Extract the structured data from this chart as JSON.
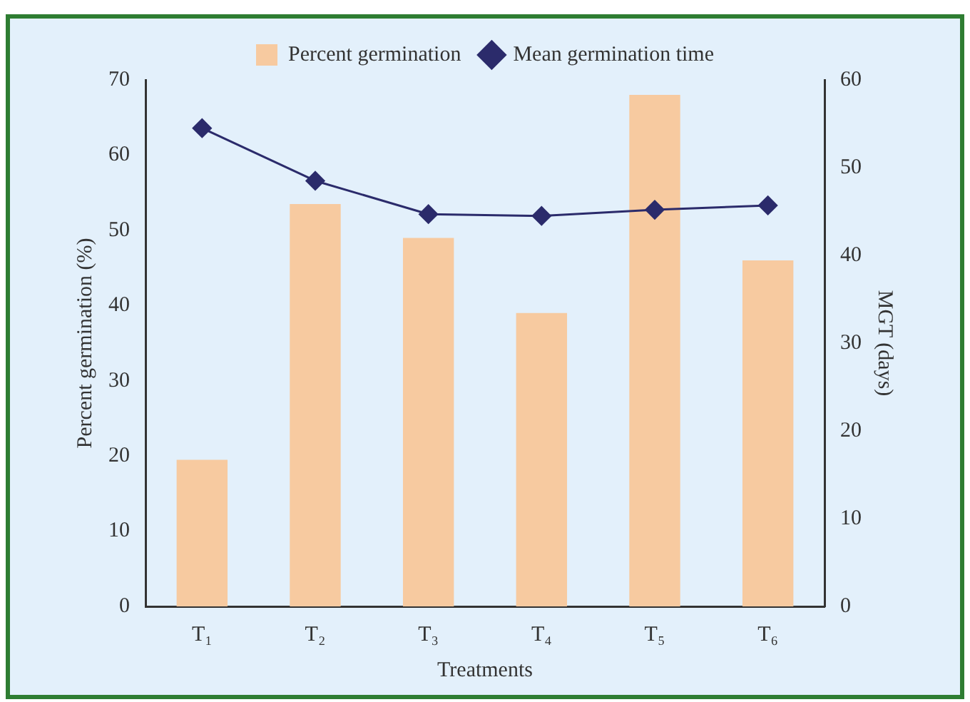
{
  "chart_data": {
    "type": "bar",
    "categories": [
      "T₁",
      "T₂",
      "T₃",
      "T₄",
      "T₅",
      "T₆"
    ],
    "xlabel": "Treatments",
    "ylabel": "Percent germination (%)",
    "y2label": "MGT (days)",
    "series": [
      {
        "name": "Percent germination",
        "color": "#f7caa0",
        "values": [
          19.5,
          53.5,
          49,
          39,
          68,
          46
        ]
      },
      {
        "name": "Mean germination time",
        "type": "line",
        "axis": "y2",
        "color": "#2b2b6b",
        "marker": "diamond",
        "values": [
          54.5,
          48.5,
          44.7,
          44.5,
          45.2,
          45.7
        ]
      }
    ],
    "ylim": [
      0,
      70
    ],
    "yticks": [
      0,
      10,
      20,
      30,
      40,
      50,
      60,
      70
    ],
    "y2lim": [
      0,
      60
    ],
    "y2ticks": [
      0,
      10,
      20,
      30,
      40,
      50,
      60
    ],
    "grid": false,
    "legend": "top"
  }
}
